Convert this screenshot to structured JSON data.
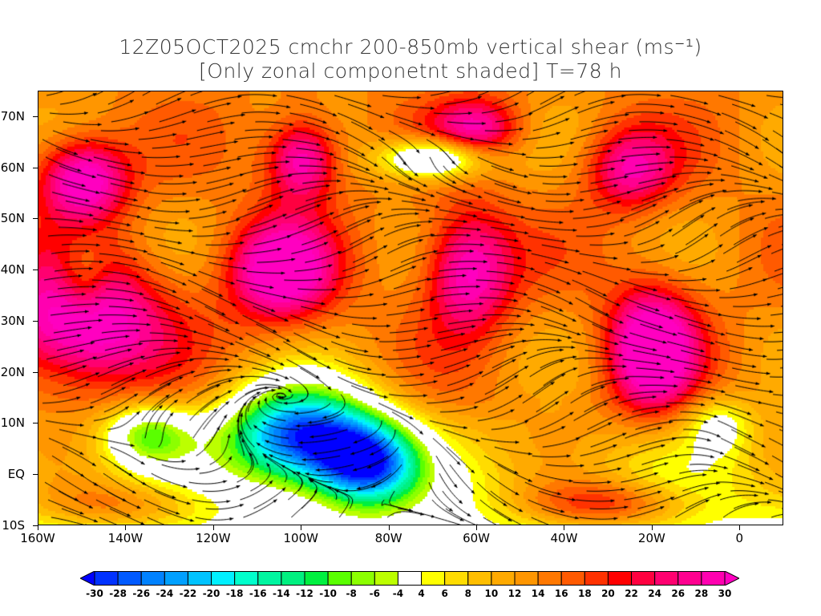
{
  "title": {
    "line1": "12Z05OCT2025 cmchr 200-850mb vertical shear (ms⁻¹)",
    "line2": "[Only zonal componetnt shaded] T=78 h"
  },
  "axes": {
    "lat_labels": [
      "70N",
      "60N",
      "50N",
      "40N",
      "30N",
      "20N",
      "10N",
      "EQ",
      "10S"
    ],
    "lat_values": [
      70,
      60,
      50,
      40,
      30,
      20,
      10,
      0,
      -10
    ],
    "lon_labels": [
      "160W",
      "140W",
      "120W",
      "100W",
      "80W",
      "60W",
      "40W",
      "20W",
      "0"
    ],
    "lon_values": [
      -160,
      -140,
      -120,
      -100,
      -80,
      -60,
      -40,
      -20,
      0
    ],
    "lon_range": [
      -160,
      10
    ],
    "lat_range": [
      -10,
      75
    ]
  },
  "colorbar": {
    "labels": [
      "-30",
      "-28",
      "-26",
      "-24",
      "-22",
      "-20",
      "-18",
      "-16",
      "-14",
      "-12",
      "-10",
      "-8",
      "-6",
      "-4",
      "4",
      "6",
      "8",
      "10",
      "12",
      "14",
      "16",
      "18",
      "20",
      "22",
      "24",
      "26",
      "28",
      "30"
    ],
    "levels": [
      -30,
      -28,
      -26,
      -24,
      -22,
      -20,
      -18,
      -16,
      -14,
      -12,
      -10,
      -8,
      -6,
      -4,
      4,
      6,
      8,
      10,
      12,
      14,
      16,
      18,
      20,
      22,
      24,
      26,
      28,
      30
    ],
    "colors": [
      "#0000ff",
      "#0032ff",
      "#005aff",
      "#0082ff",
      "#00a0ff",
      "#00c3ff",
      "#00f0ff",
      "#00ffcc",
      "#00f5a0",
      "#00f080",
      "#00f040",
      "#5aff00",
      "#8cff00",
      "#bcff00",
      "#ffffff",
      "#ffff00",
      "#ffdc00",
      "#ffbe00",
      "#ffaa00",
      "#ff9600",
      "#ff7800",
      "#ff5a00",
      "#ff3200",
      "#ff0000",
      "#ff0040",
      "#ff0070",
      "#ff0090",
      "#ff00b0"
    ],
    "low_color": "#0000ff",
    "high_color": "#ff00c0"
  }
}
